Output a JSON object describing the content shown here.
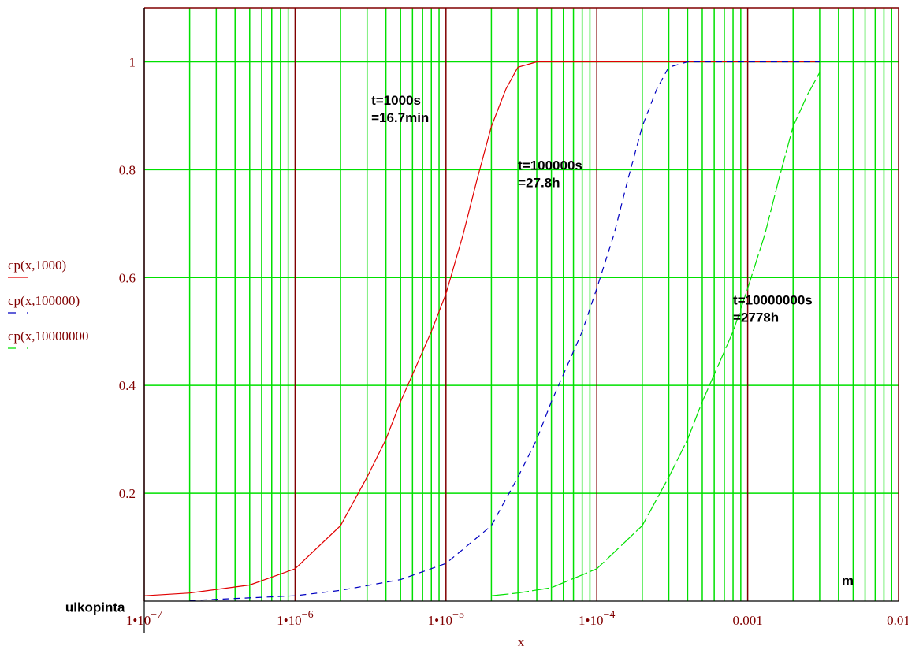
{
  "chart_data": {
    "type": "line",
    "x_scale": "log",
    "xlim": [
      1e-07,
      0.01
    ],
    "ylim": [
      0,
      1.1
    ],
    "xlabel": "x",
    "ylabel_lines": [
      "cp(x,1000)",
      "cp(x,100000)",
      "cp(x,10000000"
    ],
    "y_ticks": [
      {
        "value": 0.2,
        "label": "0.2"
      },
      {
        "value": 0.4,
        "label": "0.4"
      },
      {
        "value": 0.6,
        "label": "0.6"
      },
      {
        "value": 0.8,
        "label": "0.8"
      },
      {
        "value": 1,
        "label": "1"
      }
    ],
    "x_ticks": [
      {
        "value": 1e-07,
        "mantissa": "1•10",
        "exp": "−7"
      },
      {
        "value": 1e-06,
        "mantissa": "1•10",
        "exp": "−6"
      },
      {
        "value": 1e-05,
        "mantissa": "1•10",
        "exp": "−5"
      },
      {
        "value": 0.0001,
        "mantissa": "1•10",
        "exp": "−4"
      },
      {
        "value": 0.001,
        "mantissa": "0.001",
        "exp": ""
      },
      {
        "value": 0.01,
        "mantissa": "0.01",
        "exp": ""
      }
    ],
    "grid": true,
    "series": [
      {
        "name": "cp(x,1000)",
        "color": "#e00000",
        "dash": "none",
        "x": [
          1e-07,
          2e-07,
          5e-07,
          1e-06,
          2e-06,
          3e-06,
          4e-06,
          5e-06,
          6e-06,
          8e-06,
          1e-05,
          1.3e-05,
          1.6e-05,
          2e-05,
          2.5e-05,
          3e-05,
          4e-05,
          0.003
        ],
        "y": [
          0.01,
          0.015,
          0.03,
          0.06,
          0.14,
          0.23,
          0.3,
          0.37,
          0.42,
          0.5,
          0.57,
          0.68,
          0.78,
          0.88,
          0.95,
          0.99,
          1.0,
          1.0
        ]
      },
      {
        "name": "cp(x,100000)",
        "color": "#0000c0",
        "dash": "8,6",
        "x": [
          2e-07,
          1e-06,
          2e-06,
          5e-06,
          1e-05,
          2e-05,
          3e-05,
          4e-05,
          5e-05,
          6e-05,
          8e-05,
          0.0001,
          0.00013,
          0.00016,
          0.0002,
          0.00025,
          0.0003,
          0.0004,
          0.003
        ],
        "y": [
          0.001,
          0.01,
          0.02,
          0.04,
          0.07,
          0.14,
          0.23,
          0.3,
          0.37,
          0.42,
          0.5,
          0.58,
          0.68,
          0.78,
          0.88,
          0.95,
          0.99,
          1.0,
          1.0
        ]
      },
      {
        "name": "cp(x,10000000",
        "color": "#00e000",
        "dash": "22,4",
        "x": [
          2e-05,
          3e-05,
          5e-05,
          0.0001,
          0.0002,
          0.0003,
          0.0004,
          0.0005,
          0.0006,
          0.0008,
          0.001,
          0.0013,
          0.0016,
          0.002,
          0.0025,
          0.003
        ],
        "y": [
          0.01,
          0.015,
          0.025,
          0.06,
          0.14,
          0.23,
          0.3,
          0.37,
          0.42,
          0.5,
          0.58,
          0.68,
          0.78,
          0.88,
          0.94,
          0.98
        ]
      }
    ],
    "annotations": [
      {
        "lines": [
          "t=1000s",
          "=16.7min"
        ],
        "x": 3.2e-06,
        "y": 0.92
      },
      {
        "lines": [
          "t=100000s",
          "=27.8h"
        ],
        "x": 3e-05,
        "y": 0.8
      },
      {
        "lines": [
          "t=10000000s",
          "=2778h"
        ],
        "x": 0.0008,
        "y": 0.55
      },
      {
        "lines": [
          "ulkopinta"
        ],
        "x": 3e-08,
        "y": -0.02
      },
      {
        "lines": [
          "m"
        ],
        "x": 0.0042,
        "y": 0.03
      }
    ]
  }
}
